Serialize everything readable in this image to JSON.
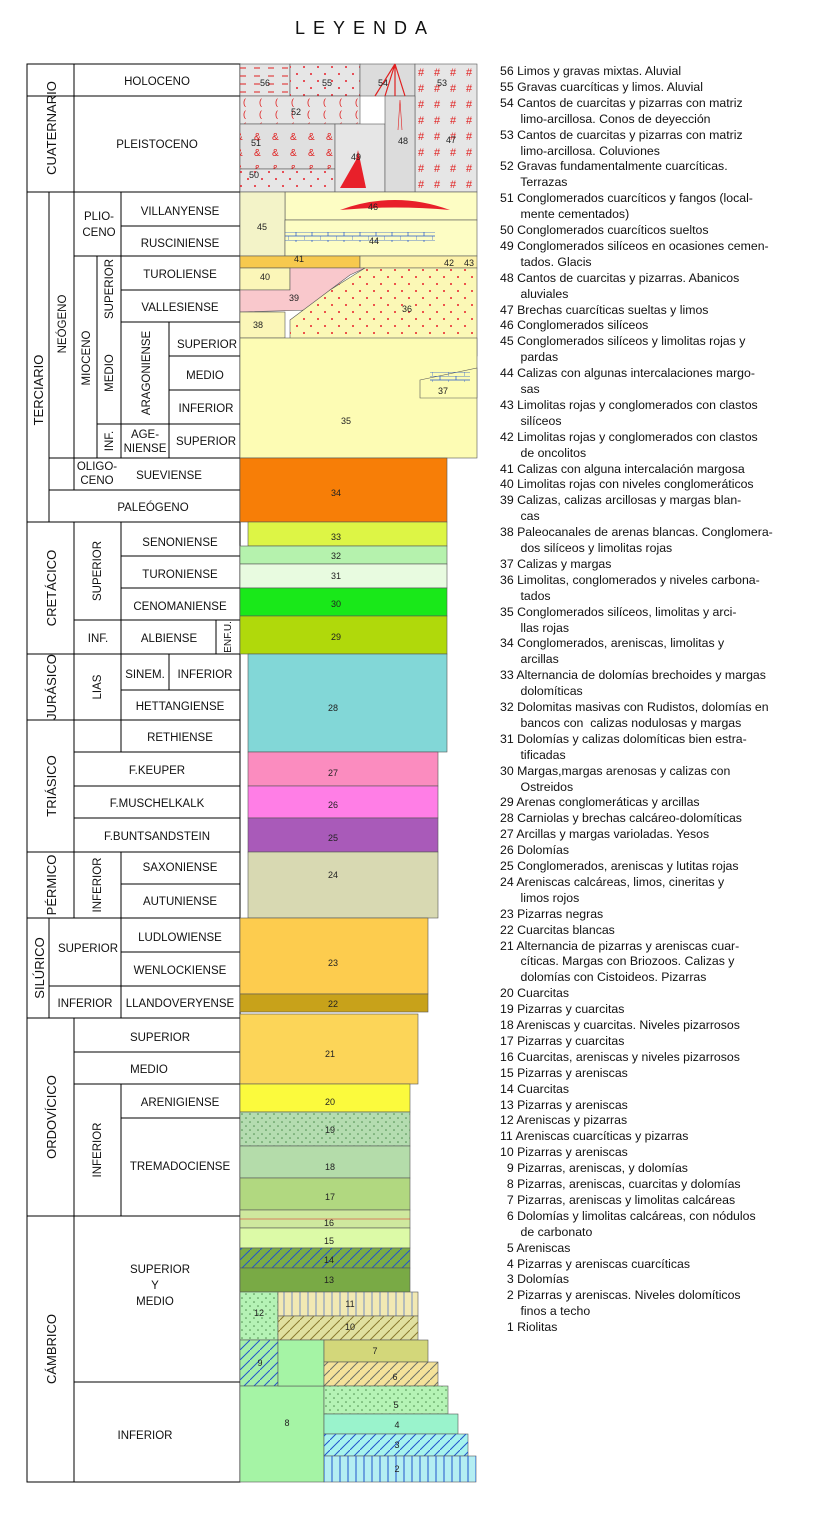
{
  "title": "LEYENDA",
  "column": {
    "eras": [
      {
        "id": "cuaternario",
        "label": "CUATERNARIO",
        "stages": [
          {
            "label": "HOLOCENO"
          },
          {
            "label": "PLEISTOCENO"
          }
        ]
      },
      {
        "id": "terciario",
        "label": "TERCIARIO",
        "subs": [
          {
            "label": "NEÓGENO"
          },
          {
            "label": "PALEÓGENO"
          }
        ],
        "epochs": [
          {
            "label": "PLIO-"
          },
          {
            "label": "CENO"
          },
          {
            "label": "MIOCENO"
          },
          {
            "label": "OLIGO-"
          },
          {
            "label": "CENO"
          }
        ],
        "subepochs": [
          {
            "label": "SUPERIOR"
          },
          {
            "label": "MEDIO"
          },
          {
            "label": "INF."
          }
        ],
        "stages": [
          {
            "label": "VILLANYENSE"
          },
          {
            "label": "RUSCINIENSE"
          },
          {
            "label": "TUROLIENSE"
          },
          {
            "label": "VALLESIENSE"
          },
          {
            "label": "ARAGONIENSE"
          },
          {
            "label": "AGE-"
          },
          {
            "label": "NIENSE"
          },
          {
            "label": "SUEVIENSE"
          }
        ],
        "substages": [
          {
            "label": "SUPERIOR"
          },
          {
            "label": "MEDIO"
          },
          {
            "label": "INFERIOR"
          },
          {
            "label": "SUPERIOR"
          }
        ]
      },
      {
        "id": "cretacico",
        "label": "CRETÁCICO",
        "subs": [
          {
            "label": "SUPERIOR"
          },
          {
            "label": "INF."
          }
        ],
        "stages": [
          {
            "label": "SENONIENSE"
          },
          {
            "label": "TURONIENSE"
          },
          {
            "label": "CENOMANIENSE"
          },
          {
            "label": "ALBIENSE"
          },
          {
            "label": "ENF.U."
          }
        ]
      },
      {
        "id": "jurasico",
        "label": "JURÁSICO",
        "subs": [
          {
            "label": "LIAS"
          }
        ],
        "stages": [
          {
            "label": "SINEM."
          },
          {
            "label": "INFERIOR"
          },
          {
            "label": "HETTANGIENSE"
          }
        ]
      },
      {
        "id": "triasico",
        "label": "TRIÁSICO",
        "stages": [
          {
            "label": "RETHIENSE"
          },
          {
            "label": "F.KEUPER"
          },
          {
            "label": "F.MUSCHELKALK"
          },
          {
            "label": "F.BUNTSANDSTEIN"
          }
        ]
      },
      {
        "id": "permico",
        "label": "PÉRMICO",
        "subs": [
          {
            "label": "INFERIOR"
          }
        ],
        "stages": [
          {
            "label": "SAXONIENSE"
          },
          {
            "label": "AUTUNIENSE"
          }
        ]
      },
      {
        "id": "silurico",
        "label": "SILÚRICO",
        "subs": [
          {
            "label": "SUPERIOR"
          },
          {
            "label": "INFERIOR"
          }
        ],
        "stages": [
          {
            "label": "LUDLOWIENSE"
          },
          {
            "label": "WENLOCKIENSE"
          },
          {
            "label": "LLANDOVERYENSE"
          }
        ]
      },
      {
        "id": "ordovicico",
        "label": "ORDOVÍCICO",
        "subs": [
          {
            "label": "SUPERIOR"
          },
          {
            "label": "MEDIO"
          },
          {
            "label": "INFERIOR"
          }
        ],
        "stages": [
          {
            "label": "ARENIGIENSE"
          },
          {
            "label": "TREMADOCIENSE"
          }
        ]
      },
      {
        "id": "cambrico",
        "label": "CÁMBRICO",
        "subs": [
          {
            "label": "SUPERIOR"
          },
          {
            "label": "Y"
          },
          {
            "label": "MEDIO"
          },
          {
            "label": "INFERIOR"
          }
        ]
      }
    ],
    "unit_colors": {
      "u56": "#e6e6e6",
      "u53": "#e6e6e6",
      "u48": "#dcdcdc",
      "u45": "#f3f3c8",
      "u44": "#fdfdc4",
      "u41": "#f7c94e",
      "u40": "#fbf6b8",
      "u39": "#f9c8cc",
      "u36": "#fbf8b6",
      "u35": "#fdfcb4",
      "u34": "#f77e07",
      "u33": "#ddf545",
      "u32": "#b5f2ad",
      "u31": "#e8fbe0",
      "u30": "#19e819",
      "u29": "#b0d90b",
      "u28": "#82d7d7",
      "u27": "#fb8cbf",
      "u26": "#ff7ee6",
      "u25": "#a95ab9",
      "u24": "#d8d9b2",
      "u23": "#fdcc4e",
      "u22": "#c8a21a",
      "u21": "#fcd558",
      "u20": "#fbfa3d",
      "u19": "#b4dcb0",
      "u18": "#b4dcaa",
      "u17": "#b1d880",
      "u16": "#cfe89e",
      "u15": "#dcfaa7",
      "u14": "#7aac45",
      "u13": "#79aa45",
      "u12": "#b5f2b5",
      "u11": "#f2e9b3",
      "u10": "#e0e0a0",
      "u9": "#a5efa9",
      "u8": "#a5f4a5",
      "u7": "#d3d77a",
      "u6": "#f4e29a",
      "u5": "#b5f3b5",
      "u4": "#9af3cc",
      "u3": "#a7f3ee",
      "u2": "#b4eef2"
    },
    "unit_numbers": [
      "56",
      "55",
      "54",
      "53",
      "52",
      "51",
      "50",
      "49",
      "48",
      "47",
      "46",
      "45",
      "44",
      "43",
      "42",
      "41",
      "40",
      "39",
      "38",
      "37",
      "36",
      "35",
      "34",
      "33",
      "32",
      "31",
      "30",
      "29",
      "28",
      "27",
      "26",
      "25",
      "24",
      "23",
      "22",
      "21",
      "20",
      "19",
      "18",
      "17",
      "16",
      "15",
      "14",
      "13",
      "12",
      "11",
      "10",
      "9",
      "8",
      "7",
      "6",
      "5",
      "4",
      "3",
      "2"
    ]
  },
  "legend": [
    "56 Limos y gravas mixtas. Aluvial",
    "55 Gravas cuarcíticas y limos. Aluvial",
    "54 Cantos de cuarcitas y pizarras con matriz\n      limo-arcillosa. Conos de deyección",
    "53 Cantos de cuarcitas y pizarras con matriz\n      limo-arcillosa. Coluviones",
    "52 Gravas fundamentalmente cuarcíticas.\n      Terrazas",
    "51 Conglomerados cuarcíticos y fangos (local-\n      mente cementados)",
    "50 Conglomerados cuarcíticos sueltos",
    "49 Conglomerados silíceos en ocasiones cemen-\n      tados. Glacis",
    "48 Cantos de cuarcitas y pizarras. Abanicos\n      aluviales",
    "47 Brechas cuarcíticas sueltas y limos",
    "46 Conglomerados silíceos",
    "45 Conglomerados silíceos y limolitas rojas y\n      pardas",
    "44 Calizas con algunas intercalaciones margo-\n      sas",
    "43 Limolitas rojas y conglomerados con clastos\n      silíceos",
    "42 Limolitas rojas y conglomerados con clastos\n      de oncolitos",
    "41 Calizas con alguna intercalación margosa",
    "40 Limolitas rojas con niveles conglomeráticos",
    "39 Calizas, calizas arcillosas y margas blan-\n      cas",
    "38 Paleocanales de arenas blancas. Conglomera-\n      dos silíceos y limolitas rojas",
    "37 Calizas y margas",
    "36 Limolitas, conglomerados y niveles carbona-\n      tados",
    "35 Conglomerados silíceos, limolitas y arci-\n      llas rojas",
    "34 Conglomerados, areniscas, limolitas y\n      arcillas",
    "33 Alternancia de dolomías brechoides y margas\n      dolomíticas",
    "32 Dolomitas masivas con Rudistos, dolomías en\n      bancos con  calizas nodulosas y margas",
    "31 Dolomías y calizas dolomíticas bien estra-\n      tificadas",
    "30 Margas,margas arenosas y calizas con\n      Ostreidos",
    "29 Arenas conglomeráticas y arcillas",
    "28 Carniolas y brechas calcáreo-dolomíticas",
    "27 Arcillas y margas varioladas. Yesos",
    "26 Dolomías",
    "25 Conglomerados, areniscas y lutitas rojas",
    "24 Areniscas calcáreas, limos, cineritas y\n      limos rojos",
    "23 Pizarras negras",
    "22 Cuarcitas blancas",
    "21 Alternancia de pizarras y areniscas cuar-\n      cíticas. Margas con Briozoos. Calizas y\n      dolomías con Cistoideos. Pizarras",
    "20 Cuarcitas",
    "19 Pizarras y cuarcitas",
    "18 Areniscas y cuarcitas. Niveles pizarrosos",
    "17 Pizarras y cuarcitas",
    "16 Cuarcitas, areniscas y niveles pizarrosos",
    "15 Pizarras y areniscas",
    "14 Cuarcitas",
    "13 Pizarras y areniscas",
    "12 Areniscas y pizarras",
    "11 Areniscas cuarcíticas y pizarras",
    "10 Pizarras y areniscas",
    "  9 Pizarras, areniscas, y dolomías",
    "  8 Pizarras, areniscas, cuarcitas y dolomías",
    "  7 Pizarras, areniscas y limolitas calcáreas",
    "  6 Dolomías y limolitas calcáreas, con nódulos\n      de carbonato",
    "  5 Areniscas",
    "  4 Pizarras y areniscas cuarcíticas",
    "  3 Dolomías",
    "  2 Pizarras y areniscas. Niveles dolomíticos\n      finos a techo",
    "  1 Riolitas"
  ]
}
